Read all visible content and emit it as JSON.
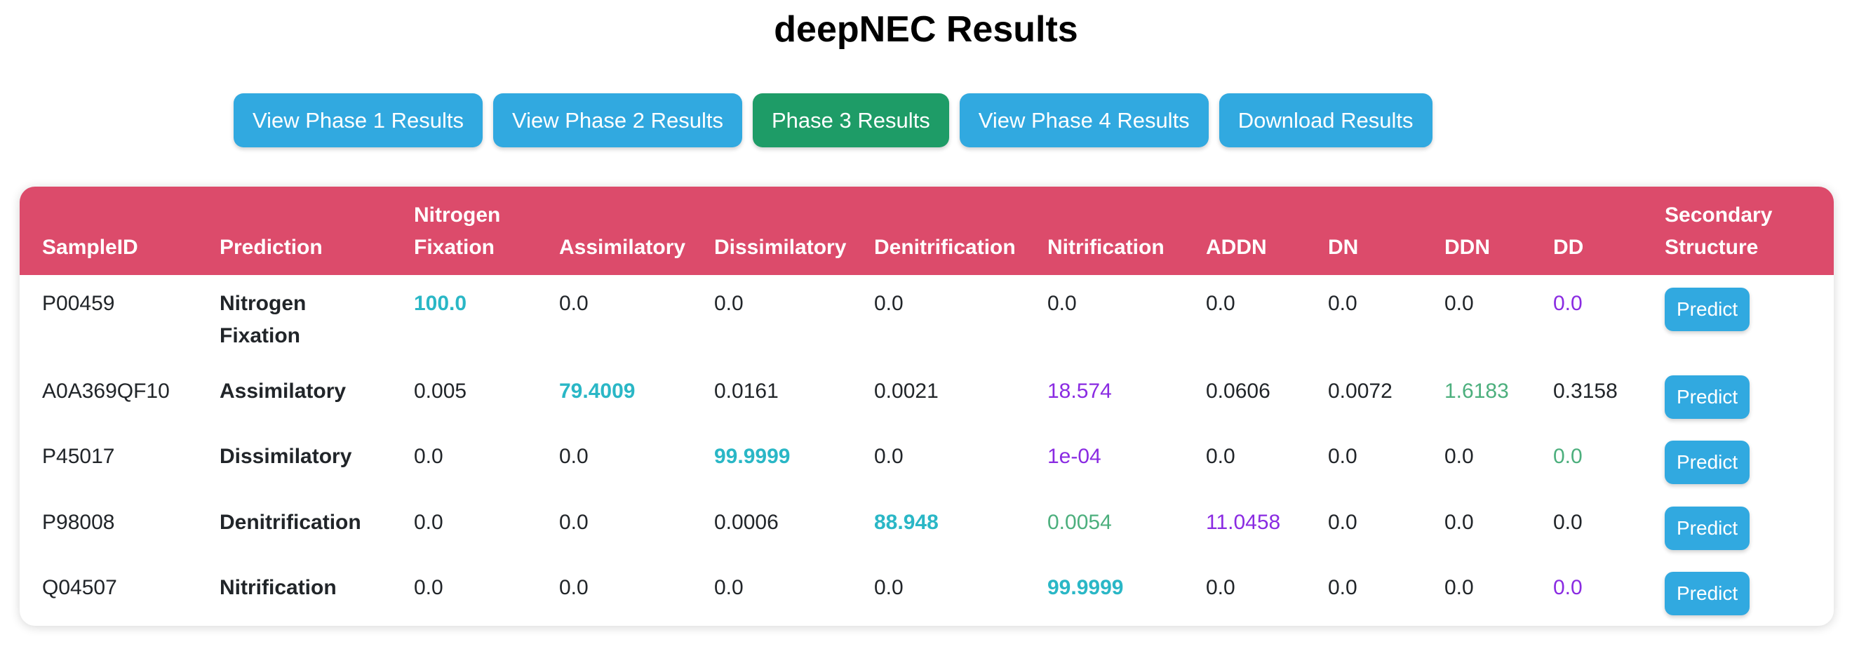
{
  "page": {
    "title": "deepNEC Results"
  },
  "toolbar": {
    "buttons": [
      {
        "label": "View Phase 1 Results",
        "active": false
      },
      {
        "label": "View Phase 2 Results",
        "active": false
      },
      {
        "label": "Phase 3 Results",
        "active": true
      },
      {
        "label": "View Phase 4 Results",
        "active": false
      },
      {
        "label": "Download Results",
        "active": false
      }
    ]
  },
  "colors": {
    "header_bg": "#dc4b6b",
    "button_blue": "#31a9e0",
    "button_active_green": "#1e9c67",
    "top_score": "#2ab7c6",
    "second_score": "#8a2be2",
    "third_score": "#4caf7d"
  },
  "table": {
    "headers": [
      "SampleID",
      "Prediction",
      "Nitrogen Fixation",
      "Assimilatory",
      "Dissimilatory",
      "Denitrification",
      "Nitrification",
      "ADDN",
      "DN",
      "DDN",
      "DD",
      "Secondary Structure"
    ],
    "rows": [
      {
        "sample_id": "P00459",
        "prediction": "Nitrogen Fixation",
        "values": [
          "100.0",
          "0.0",
          "0.0",
          "0.0",
          "0.0",
          "0.0",
          "0.0",
          "0.0",
          "0.0"
        ],
        "highlight": [
          "top",
          "",
          "",
          "",
          "",
          "",
          "",
          "",
          "second"
        ],
        "action_label": "Predict"
      },
      {
        "sample_id": "A0A369QF10",
        "prediction": "Assimilatory",
        "values": [
          "0.005",
          "79.4009",
          "0.0161",
          "0.0021",
          "18.574",
          "0.0606",
          "0.0072",
          "1.6183",
          "0.3158"
        ],
        "highlight": [
          "",
          "top",
          "",
          "",
          "second",
          "",
          "",
          "third",
          ""
        ],
        "action_label": "Predict"
      },
      {
        "sample_id": "P45017",
        "prediction": "Dissimilatory",
        "values": [
          "0.0",
          "0.0",
          "99.9999",
          "0.0",
          "1e-04",
          "0.0",
          "0.0",
          "0.0",
          "0.0"
        ],
        "highlight": [
          "",
          "",
          "top",
          "",
          "second",
          "",
          "",
          "",
          "third"
        ],
        "action_label": "Predict"
      },
      {
        "sample_id": "P98008",
        "prediction": "Denitrification",
        "values": [
          "0.0",
          "0.0",
          "0.0006",
          "88.948",
          "0.0054",
          "11.0458",
          "0.0",
          "0.0",
          "0.0"
        ],
        "highlight": [
          "",
          "",
          "",
          "top",
          "third",
          "second",
          "",
          "",
          ""
        ],
        "action_label": "Predict"
      },
      {
        "sample_id": "Q04507",
        "prediction": "Nitrification",
        "values": [
          "0.0",
          "0.0",
          "0.0",
          "0.0",
          "99.9999",
          "0.0",
          "0.0",
          "0.0",
          "0.0"
        ],
        "highlight": [
          "",
          "",
          "",
          "",
          "top",
          "",
          "",
          "",
          "second"
        ],
        "action_label": "Predict"
      }
    ]
  }
}
